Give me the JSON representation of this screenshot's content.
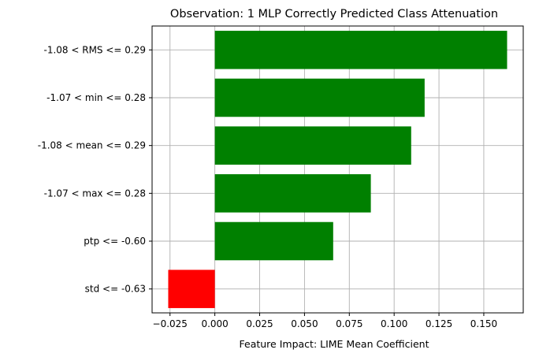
{
  "chart_data": {
    "type": "bar",
    "orientation": "horizontal",
    "title": "Observation: 1 MLP Correctly Predicted Class Attenuation",
    "xlabel": "Feature Impact: LIME Mean Coefficient",
    "ylabel": "",
    "categories": [
      "-1.08 < RMS <= 0.29",
      "-1.07 < min <= 0.28",
      "-1.08 < mean <= 0.29",
      "-1.07 < max <= 0.28",
      "ptp <= -0.60",
      "std <= -0.63"
    ],
    "values": [
      0.163,
      0.117,
      0.1095,
      0.087,
      0.066,
      -0.026
    ],
    "xlim": [
      -0.035,
      0.172
    ],
    "xticks": [
      -0.025,
      0.0,
      0.025,
      0.05,
      0.075,
      0.1,
      0.125,
      0.15
    ],
    "xtick_labels": [
      "−0.025",
      "0.000",
      "0.025",
      "0.050",
      "0.075",
      "0.100",
      "0.125",
      "0.150"
    ],
    "grid": true,
    "colors": {
      "positive": "#008000",
      "negative": "#ff0000"
    }
  }
}
